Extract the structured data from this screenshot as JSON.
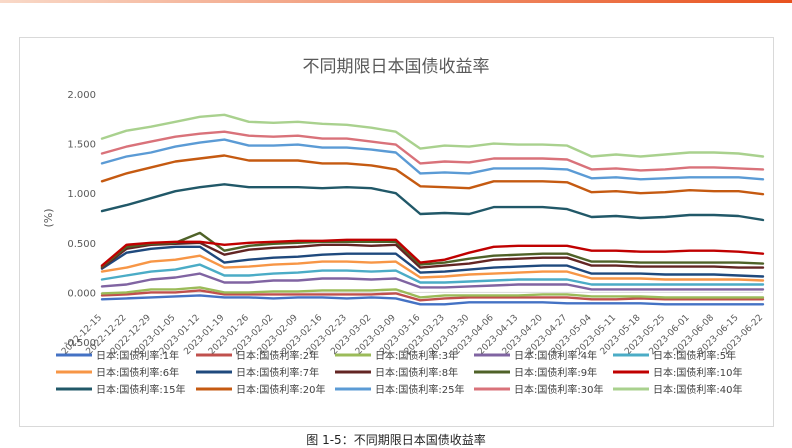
{
  "chart_data": {
    "type": "line",
    "title": "不同期限日本国债收益率",
    "ylabel": "(%)",
    "ylim": [
      -0.5,
      2.0
    ],
    "yticks": [
      "2.000",
      "1.500",
      "1.000",
      "0.500",
      "0.000",
      "-0.500"
    ],
    "grid": false,
    "legend_position": "bottom",
    "x": [
      "2022-12-15",
      "2022-12-22",
      "2022-12-29",
      "2023-01-05",
      "2023-01-12",
      "2023-01-19",
      "2023-01-26",
      "2023-02-02",
      "2023-02-09",
      "2023-02-16",
      "2023-02-23",
      "2023-03-02",
      "2023-03-09",
      "2023-03-16",
      "2023-03-23",
      "2023-03-30",
      "2023-04-06",
      "2023-04-13",
      "2023-04-20",
      "2023-04-27",
      "2023-05-04",
      "2023-05-11",
      "2023-05-18",
      "2023-05-25",
      "2023-06-01",
      "2023-06-08",
      "2023-06-15",
      "2023-06-22"
    ],
    "series": [
      {
        "name": "日本:国债利率:1年",
        "color": "#4472c4",
        "values": [
          -0.07,
          -0.06,
          -0.05,
          -0.04,
          -0.03,
          -0.05,
          -0.05,
          -0.06,
          -0.05,
          -0.05,
          -0.06,
          -0.05,
          -0.06,
          -0.12,
          -0.12,
          -0.1,
          -0.1,
          -0.1,
          -0.1,
          -0.11,
          -0.11,
          -0.11,
          -0.11,
          -0.12,
          -0.12,
          -0.12,
          -0.12,
          -0.12
        ]
      },
      {
        "name": "日本:国债利率:2年",
        "color": "#c0504d",
        "values": [
          -0.03,
          -0.02,
          0.0,
          0.0,
          0.02,
          -0.02,
          -0.02,
          -0.02,
          -0.02,
          -0.02,
          -0.02,
          -0.02,
          -0.01,
          -0.08,
          -0.06,
          -0.05,
          -0.05,
          -0.05,
          -0.05,
          -0.05,
          -0.07,
          -0.07,
          -0.06,
          -0.07,
          -0.07,
          -0.07,
          -0.07,
          -0.07
        ]
      },
      {
        "name": "日本:国债利率:3年",
        "color": "#9bbb59",
        "values": [
          -0.01,
          0.0,
          0.03,
          0.03,
          0.05,
          0.0,
          0.0,
          0.01,
          0.01,
          0.02,
          0.02,
          0.02,
          0.03,
          -0.05,
          -0.03,
          -0.03,
          -0.03,
          -0.03,
          -0.02,
          -0.02,
          -0.04,
          -0.04,
          -0.04,
          -0.05,
          -0.05,
          -0.05,
          -0.05,
          -0.05
        ]
      },
      {
        "name": "日本:国债利率:4年",
        "color": "#8064a2",
        "values": [
          0.06,
          0.08,
          0.13,
          0.15,
          0.19,
          0.1,
          0.1,
          0.12,
          0.12,
          0.14,
          0.14,
          0.13,
          0.14,
          0.05,
          0.05,
          0.06,
          0.07,
          0.08,
          0.08,
          0.08,
          0.03,
          0.03,
          0.03,
          0.03,
          0.03,
          0.03,
          0.03,
          0.03
        ]
      },
      {
        "name": "日本:国债利率:5年",
        "color": "#4bacc6",
        "values": [
          0.13,
          0.17,
          0.21,
          0.23,
          0.28,
          0.17,
          0.17,
          0.19,
          0.2,
          0.22,
          0.22,
          0.21,
          0.22,
          0.1,
          0.1,
          0.11,
          0.12,
          0.13,
          0.13,
          0.13,
          0.08,
          0.08,
          0.08,
          0.08,
          0.08,
          0.08,
          0.08,
          0.08
        ]
      },
      {
        "name": "日本:国债利率:6年",
        "color": "#f79646",
        "values": [
          0.21,
          0.25,
          0.31,
          0.33,
          0.37,
          0.25,
          0.26,
          0.28,
          0.29,
          0.31,
          0.31,
          0.3,
          0.31,
          0.15,
          0.16,
          0.18,
          0.19,
          0.2,
          0.21,
          0.21,
          0.14,
          0.14,
          0.14,
          0.13,
          0.13,
          0.13,
          0.13,
          0.12
        ]
      },
      {
        "name": "日本:国债利率:7年",
        "color": "#1f497d",
        "values": [
          0.24,
          0.4,
          0.44,
          0.46,
          0.46,
          0.3,
          0.33,
          0.35,
          0.36,
          0.38,
          0.39,
          0.39,
          0.39,
          0.2,
          0.21,
          0.23,
          0.25,
          0.26,
          0.27,
          0.27,
          0.19,
          0.19,
          0.19,
          0.18,
          0.18,
          0.18,
          0.17,
          0.16
        ]
      },
      {
        "name": "日本:国债利率:8年",
        "color": "#632523",
        "values": [
          0.25,
          0.44,
          0.48,
          0.49,
          0.5,
          0.38,
          0.43,
          0.45,
          0.46,
          0.48,
          0.48,
          0.47,
          0.48,
          0.25,
          0.27,
          0.29,
          0.33,
          0.34,
          0.35,
          0.35,
          0.27,
          0.27,
          0.26,
          0.26,
          0.26,
          0.26,
          0.25,
          0.25
        ]
      },
      {
        "name": "日本:国债利率:9年",
        "color": "#4f6228",
        "values": [
          0.26,
          0.46,
          0.49,
          0.5,
          0.6,
          0.42,
          0.47,
          0.49,
          0.5,
          0.51,
          0.51,
          0.51,
          0.51,
          0.28,
          0.3,
          0.34,
          0.37,
          0.38,
          0.39,
          0.39,
          0.31,
          0.31,
          0.3,
          0.3,
          0.3,
          0.3,
          0.3,
          0.29
        ]
      },
      {
        "name": "日本:国债利率:10年",
        "color": "#c00000",
        "values": [
          0.27,
          0.48,
          0.5,
          0.51,
          0.51,
          0.48,
          0.5,
          0.51,
          0.52,
          0.52,
          0.53,
          0.53,
          0.53,
          0.3,
          0.33,
          0.4,
          0.46,
          0.47,
          0.47,
          0.47,
          0.42,
          0.42,
          0.41,
          0.41,
          0.42,
          0.42,
          0.41,
          0.39
        ]
      },
      {
        "name": "日本:国债利率:15年",
        "color": "#215868",
        "values": [
          0.82,
          0.88,
          0.95,
          1.02,
          1.06,
          1.09,
          1.06,
          1.06,
          1.06,
          1.05,
          1.06,
          1.05,
          1.0,
          0.79,
          0.8,
          0.79,
          0.86,
          0.86,
          0.86,
          0.84,
          0.76,
          0.77,
          0.75,
          0.76,
          0.78,
          0.78,
          0.77,
          0.73
        ]
      },
      {
        "name": "日本:国债利率:20年",
        "color": "#c55a11",
        "values": [
          1.12,
          1.2,
          1.26,
          1.32,
          1.35,
          1.38,
          1.33,
          1.33,
          1.33,
          1.3,
          1.3,
          1.28,
          1.24,
          1.07,
          1.06,
          1.05,
          1.12,
          1.12,
          1.12,
          1.11,
          1.01,
          1.02,
          1.0,
          1.01,
          1.03,
          1.02,
          1.02,
          0.99
        ]
      },
      {
        "name": "日本:国债利率:25年",
        "color": "#5b9bd5",
        "values": [
          1.3,
          1.37,
          1.41,
          1.47,
          1.51,
          1.54,
          1.48,
          1.48,
          1.49,
          1.46,
          1.46,
          1.44,
          1.41,
          1.2,
          1.21,
          1.2,
          1.25,
          1.25,
          1.25,
          1.24,
          1.15,
          1.16,
          1.14,
          1.15,
          1.16,
          1.16,
          1.16,
          1.14
        ]
      },
      {
        "name": "日本:国债利率:30年",
        "color": "#d9727a",
        "values": [
          1.4,
          1.47,
          1.52,
          1.57,
          1.6,
          1.62,
          1.58,
          1.57,
          1.58,
          1.55,
          1.55,
          1.52,
          1.49,
          1.3,
          1.32,
          1.31,
          1.35,
          1.35,
          1.35,
          1.34,
          1.24,
          1.25,
          1.23,
          1.24,
          1.26,
          1.26,
          1.25,
          1.24
        ]
      },
      {
        "name": "日本:国债利率:40年",
        "color": "#a9d18e",
        "values": [
          1.55,
          1.63,
          1.67,
          1.72,
          1.77,
          1.79,
          1.72,
          1.71,
          1.72,
          1.7,
          1.69,
          1.66,
          1.62,
          1.45,
          1.48,
          1.47,
          1.5,
          1.49,
          1.49,
          1.48,
          1.37,
          1.39,
          1.37,
          1.39,
          1.41,
          1.41,
          1.4,
          1.37
        ]
      }
    ]
  },
  "caption": "图 1-5：不同期限日本国债收益率"
}
